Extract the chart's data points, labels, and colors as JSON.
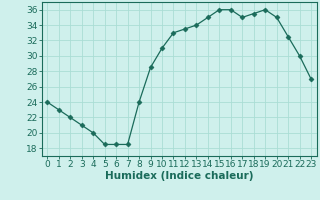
{
  "x": [
    0,
    1,
    2,
    3,
    4,
    5,
    6,
    7,
    8,
    9,
    10,
    11,
    12,
    13,
    14,
    15,
    16,
    17,
    18,
    19,
    20,
    21,
    22,
    23
  ],
  "y": [
    24,
    23,
    22,
    21,
    20,
    18.5,
    18.5,
    18.5,
    24,
    28.5,
    31,
    33,
    33.5,
    34,
    35,
    36,
    36,
    35,
    35.5,
    36,
    35,
    32.5,
    30,
    27
  ],
  "xlabel": "Humidex (Indice chaleur)",
  "ylim": [
    17,
    37
  ],
  "yticks": [
    18,
    20,
    22,
    24,
    26,
    28,
    30,
    32,
    34,
    36
  ],
  "xlim": [
    -0.5,
    23.5
  ],
  "xticks": [
    0,
    1,
    2,
    3,
    4,
    5,
    6,
    7,
    8,
    9,
    10,
    11,
    12,
    13,
    14,
    15,
    16,
    17,
    18,
    19,
    20,
    21,
    22,
    23
  ],
  "line_color": "#1a6b5a",
  "marker": "D",
  "marker_size": 2.5,
  "bg_color": "#cff0ec",
  "grid_color": "#aaddd5",
  "tick_label_fontsize": 6.5,
  "xlabel_fontsize": 7.5
}
